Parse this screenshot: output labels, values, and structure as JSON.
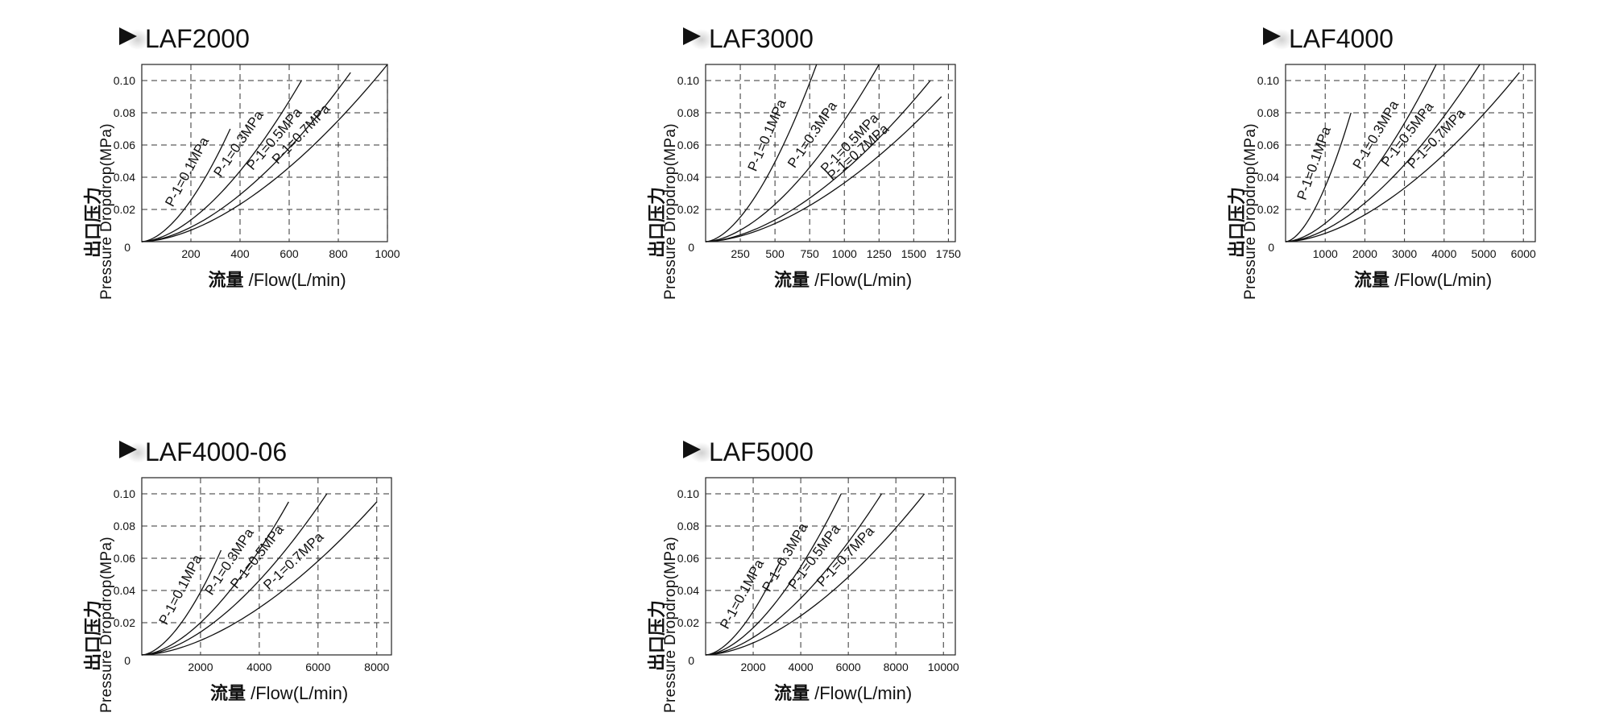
{
  "ylabel_cn": "出口压力",
  "ylabel_en": "Pressure Dropdrop(MPa)",
  "xlabel_cn": "流量",
  "xlabel_en": " /Flow(L/min)",
  "chart_data": [
    {
      "type": "line",
      "title": "LAF2000",
      "xlim": [
        0,
        1000
      ],
      "ylim": [
        0,
        0.11
      ],
      "xticks": [
        200,
        400,
        600,
        800,
        1000
      ],
      "yticks": [
        0.02,
        0.04,
        0.06,
        0.08,
        0.1
      ],
      "xtick_labels": [
        "200",
        "400",
        "600",
        "800",
        "1000"
      ],
      "ytick_labels": [
        "0.02",
        "0.04",
        "0.06",
        "0.08",
        "0.10"
      ],
      "origin_label": "0",
      "grid": true,
      "series": [
        {
          "name": "P-1=0.1MPa",
          "max_x": 360,
          "max_y": 0.07
        },
        {
          "name": "P-1=0.3MPa",
          "max_x": 650,
          "max_y": 0.1
        },
        {
          "name": "P-1=0.5MPa",
          "max_x": 850,
          "max_y": 0.105
        },
        {
          "name": "P-1=0.7MPa",
          "max_x": 1000,
          "max_y": 0.11
        }
      ]
    },
    {
      "type": "line",
      "title": "LAF3000",
      "xlim": [
        0,
        1800
      ],
      "ylim": [
        0,
        0.11
      ],
      "xticks": [
        250,
        500,
        750,
        1000,
        1250,
        1500,
        1750
      ],
      "yticks": [
        0.02,
        0.04,
        0.06,
        0.08,
        0.1
      ],
      "xtick_labels": [
        "250",
        "500",
        "750",
        "1000",
        "1250",
        "1500",
        "1750"
      ],
      "ytick_labels": [
        "0.02",
        "0.04",
        "0.06",
        "0.08",
        "0.10"
      ],
      "origin_label": "0",
      "grid": true,
      "series": [
        {
          "name": "P-1=0.1MPa",
          "max_x": 800,
          "max_y": 0.11
        },
        {
          "name": "P-1=0.3MPa",
          "max_x": 1250,
          "max_y": 0.11
        },
        {
          "name": "P-1=0.5MPa",
          "max_x": 1620,
          "max_y": 0.1
        },
        {
          "name": "P-1=0.7MPa",
          "max_x": 1700,
          "max_y": 0.09
        }
      ]
    },
    {
      "type": "line",
      "title": "LAF4000",
      "xlim": [
        0,
        6300
      ],
      "ylim": [
        0,
        0.11
      ],
      "xticks": [
        1000,
        2000,
        3000,
        4000,
        5000,
        6000
      ],
      "yticks": [
        0.02,
        0.04,
        0.06,
        0.08,
        0.1
      ],
      "xtick_labels": [
        "1000",
        "2000",
        "3000",
        "4000",
        "5000",
        "6000"
      ],
      "ytick_labels": [
        "0.02",
        "0.04",
        "0.06",
        "0.08",
        "0.10"
      ],
      "origin_label": "0",
      "grid": true,
      "series": [
        {
          "name": "P-1=0.1MPa",
          "max_x": 1650,
          "max_y": 0.08
        },
        {
          "name": "P-1=0.3MPa",
          "max_x": 3800,
          "max_y": 0.11
        },
        {
          "name": "P-1=0.5MPa",
          "max_x": 4900,
          "max_y": 0.11
        },
        {
          "name": "P-1=0.7MPa",
          "max_x": 5900,
          "max_y": 0.105
        }
      ]
    },
    {
      "type": "line",
      "title": "LAF4000-06",
      "xlim": [
        0,
        8500
      ],
      "ylim": [
        0,
        0.11
      ],
      "xticks": [
        2000,
        4000,
        6000,
        8000
      ],
      "yticks": [
        0.02,
        0.04,
        0.06,
        0.08,
        0.1
      ],
      "xtick_labels": [
        "2000",
        "4000",
        "6000",
        "8000"
      ],
      "ytick_labels": [
        "0.02",
        "0.04",
        "0.06",
        "0.08",
        "0.10"
      ],
      "origin_label": "0",
      "grid": true,
      "series": [
        {
          "name": "P-1=0.1MPa",
          "max_x": 2700,
          "max_y": 0.065
        },
        {
          "name": "P-1=0.3MPa",
          "max_x": 5000,
          "max_y": 0.095
        },
        {
          "name": "P-1=0.5MPa",
          "max_x": 6300,
          "max_y": 0.1
        },
        {
          "name": "P-1=0.7MPa",
          "max_x": 8000,
          "max_y": 0.095
        }
      ]
    },
    {
      "type": "line",
      "title": "LAF5000",
      "xlim": [
        0,
        10500
      ],
      "ylim": [
        0,
        0.11
      ],
      "xticks": [
        2000,
        4000,
        6000,
        8000,
        10000
      ],
      "yticks": [
        0.02,
        0.04,
        0.06,
        0.08,
        0.1
      ],
      "xtick_labels": [
        "2000",
        "4000",
        "6000",
        "8000",
        "10000"
      ],
      "ytick_labels": [
        "0.02",
        "0.04",
        "0.06",
        "0.08",
        "0.10"
      ],
      "origin_label": "0",
      "grid": true,
      "series": [
        {
          "name": "P-1=0.1MPa",
          "max_x": 3200,
          "max_y": 0.06
        },
        {
          "name": "P-1=0.3MPa",
          "max_x": 5700,
          "max_y": 0.1
        },
        {
          "name": "P-1=0.5MPa",
          "max_x": 7400,
          "max_y": 0.1
        },
        {
          "name": "P-1=0.7MPa",
          "max_x": 9200,
          "max_y": 0.1
        }
      ]
    }
  ]
}
